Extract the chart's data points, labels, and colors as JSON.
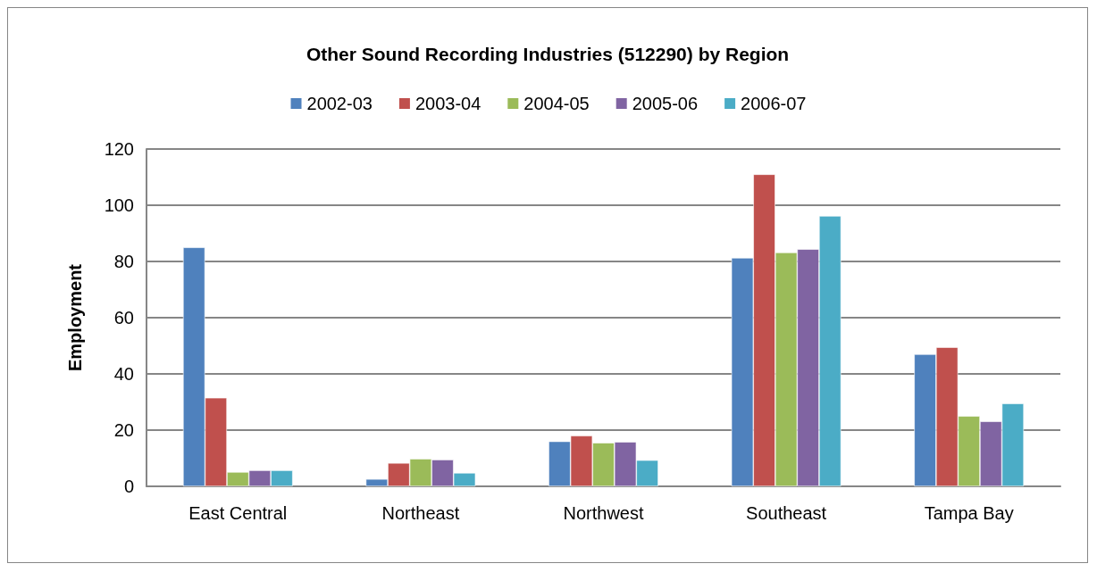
{
  "chart_data": {
    "type": "bar",
    "title": "Other Sound Recording Industries (512290) by Region",
    "ylabel": "Employment",
    "categories": [
      "East Central",
      "Northeast",
      "Northwest",
      "Southeast",
      "Tampa Bay"
    ],
    "series": [
      {
        "name": "2002-03",
        "color": "#4f81bd",
        "values": [
          85,
          2.6,
          16,
          81.3,
          47
        ]
      },
      {
        "name": "2003-04",
        "color": "#c0504d",
        "values": [
          31.5,
          8.3,
          18,
          111,
          49.5
        ]
      },
      {
        "name": "2004-05",
        "color": "#9bbb59",
        "values": [
          5.1,
          9.8,
          15.5,
          83.2,
          25
        ]
      },
      {
        "name": "2005-06",
        "color": "#8064a2",
        "values": [
          5.7,
          9.5,
          15.8,
          84.4,
          23.1
        ]
      },
      {
        "name": "2006-07",
        "color": "#4bacc6",
        "values": [
          5.7,
          4.8,
          9.3,
          96.2,
          29.5
        ]
      }
    ],
    "ylim": [
      0,
      120
    ],
    "yticks": [
      0,
      20,
      40,
      60,
      80,
      100,
      120
    ],
    "grid": "y",
    "legend": "top"
  }
}
